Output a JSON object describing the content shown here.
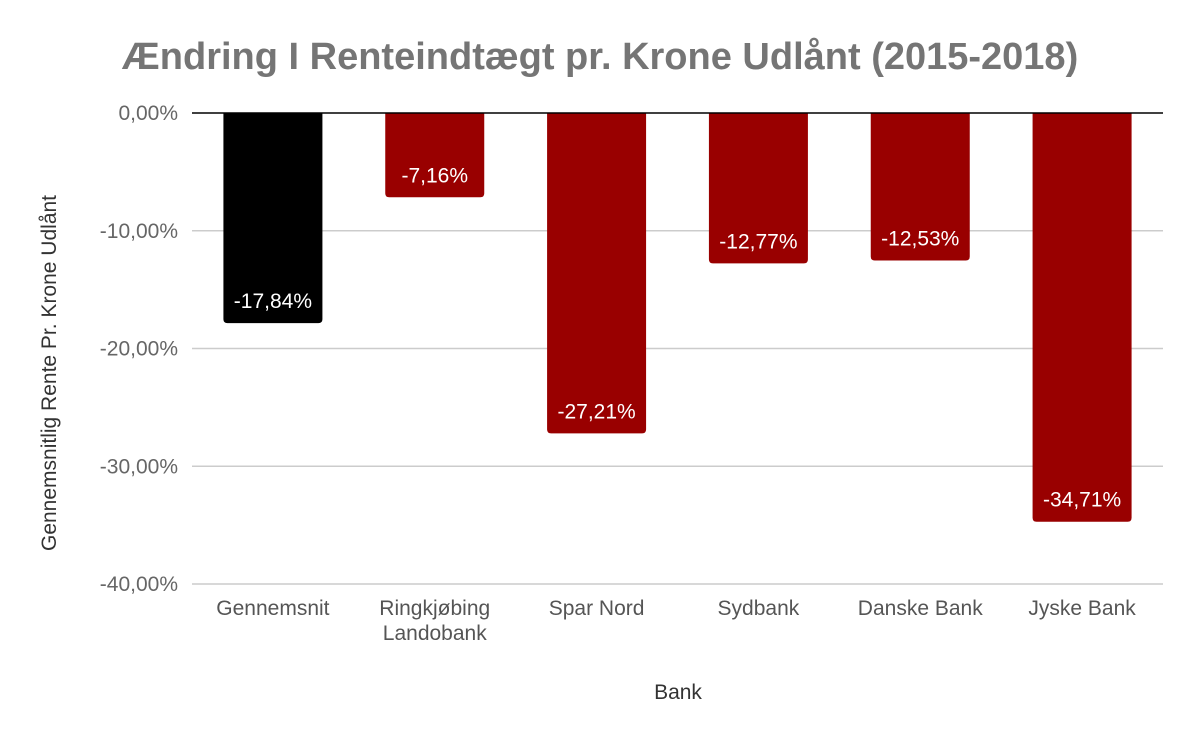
{
  "chart_data": {
    "type": "bar",
    "title": "Ændring I Renteindtægt pr. Krone Udlånt (2015-2018)",
    "xlabel": "Bank",
    "ylabel": "Gennemsnitlig Rente Pr. Krone Udlånt",
    "ylim": [
      -40,
      0
    ],
    "yticks": [
      0,
      -10,
      -20,
      -30,
      -40
    ],
    "ytick_labels": [
      "0,00%",
      "-10,00%",
      "-20,00%",
      "-30,00%",
      "-40,00%"
    ],
    "grid": true,
    "legend": "none",
    "categories": [
      [
        "Gennemsnit"
      ],
      [
        "Ringkjøbing",
        "Landobank"
      ],
      [
        "Spar Nord"
      ],
      [
        "Sydbank"
      ],
      [
        "Danske Bank"
      ],
      [
        "Jyske Bank"
      ]
    ],
    "values": [
      -17.84,
      -7.16,
      -27.21,
      -12.77,
      -12.53,
      -34.71
    ],
    "data_labels": [
      "-17,84%",
      "-7,16%",
      "-27,21%",
      "-12,77%",
      "-12,53%",
      "-34,71%"
    ],
    "colors": [
      "#000000",
      "#990000",
      "#990000",
      "#990000",
      "#990000",
      "#990000"
    ]
  },
  "colors": {
    "baseline": "#000000",
    "grid": "#cccccc"
  }
}
